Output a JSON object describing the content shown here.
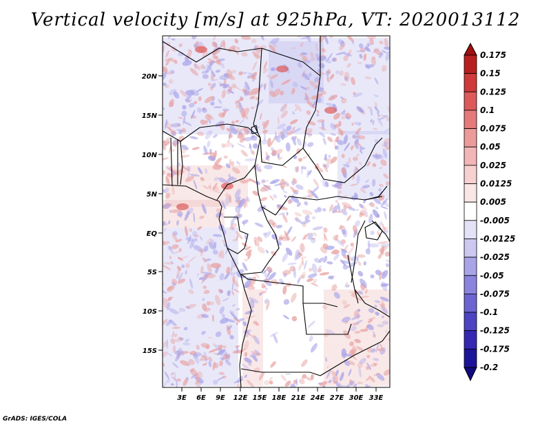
{
  "title": "Vertical velocity [m/s] at 925hPa, VT: 2020013112",
  "footer": "GrADS: IGES/COLA",
  "map": {
    "lat_labels": [
      "20N",
      "15N",
      "10N",
      "5N",
      "EQ",
      "5S",
      "10S",
      "15S"
    ],
    "lon_labels": [
      "3E",
      "6E",
      "9E",
      "12E",
      "15E",
      "18E",
      "21E",
      "24E",
      "27E",
      "30E",
      "33E"
    ],
    "colors": {
      "positive": "#e8a4a4",
      "negative": "#a9a4e8",
      "border": "#000000"
    }
  },
  "colorbar": {
    "labels": [
      "0.175",
      "0.15",
      "0.125",
      "0.1",
      "0.075",
      "0.05",
      "0.025",
      "0.0125",
      "0.005",
      "-0.005",
      "-0.0125",
      "-0.025",
      "-0.05",
      "-0.075",
      "-0.1",
      "-0.125",
      "-0.175",
      "-0.2"
    ],
    "colors": [
      "#a01010",
      "#b82020",
      "#d03a3a",
      "#dc5a5a",
      "#e47a7a",
      "#ec9a9a",
      "#f2b6b6",
      "#f7d0d0",
      "#fbe6e6",
      "#ffffff",
      "#e4e2f7",
      "#ccc8f2",
      "#a9a4e8",
      "#8a84de",
      "#6c64d2",
      "#4d44c4",
      "#3528b2",
      "#1c1498",
      "#100a7c"
    ]
  }
}
